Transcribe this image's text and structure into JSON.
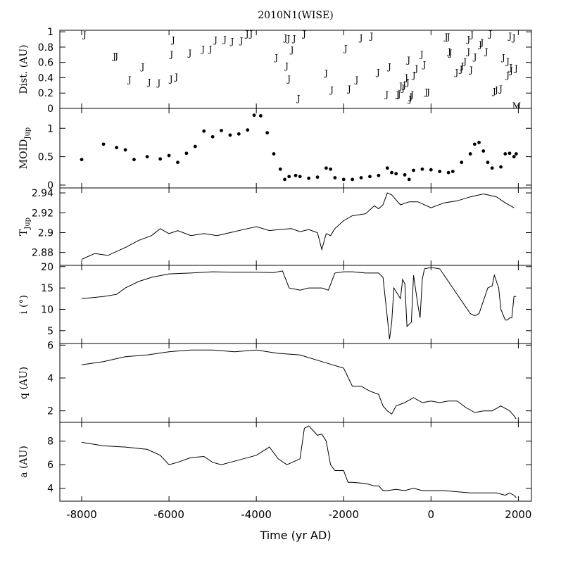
{
  "title": "2010N1(WISE)",
  "x_axis": {
    "label": "Time (yr AD)",
    "range": [
      -8500,
      2300
    ],
    "ticks": [
      -8000,
      -6000,
      -4000,
      -2000,
      0,
      2000
    ],
    "tick_labels": [
      "-8000",
      "-6000",
      "-4000",
      "-2000",
      "0",
      "2000"
    ]
  },
  "chart_data": [
    {
      "type": "scatter",
      "panel": "dist",
      "ylabel": "Dist. (AU)",
      "ylim": [
        0,
        1.02
      ],
      "yticks": [
        0,
        0.2,
        0.4,
        0.6,
        0.8,
        1
      ],
      "ytick_labels": [
        "0",
        "0.2",
        "0.4",
        "0.6",
        "0.8",
        "1"
      ],
      "marker_text": "J",
      "marker_m": "M",
      "x": [
        -7930,
        -7250,
        -7200,
        -6900,
        -6600,
        -6450,
        -6230,
        -5950,
        -5940,
        -5900,
        -5830,
        -5520,
        -5220,
        -5050,
        -4930,
        -4720,
        -4550,
        -4340,
        -4210,
        -4120,
        -3540,
        -3330,
        -3300,
        -3260,
        -3250,
        -3180,
        -3130,
        -3030,
        -2900,
        -2400,
        -2270,
        -1950,
        -1870,
        -1700,
        -1600,
        -1360,
        -1210,
        -1010,
        -950,
        -760,
        -730,
        -690,
        -640,
        -610,
        -560,
        -530,
        -510,
        -480,
        -460,
        -430,
        -390,
        -330,
        -210,
        -150,
        -110,
        -60,
        350,
        400,
        420,
        450,
        590,
        690,
        720,
        780,
        860,
        860,
        920,
        940,
        1010,
        1130,
        1170,
        1270,
        1360,
        1450,
        1500,
        1600,
        1660,
        1760,
        1760,
        1810,
        1830,
        1840,
        1900,
        1950
      ],
      "y": [
        0.97,
        0.69,
        0.69,
        0.38,
        0.55,
        0.35,
        0.34,
        0.39,
        0.71,
        0.9,
        0.42,
        0.73,
        0.78,
        0.78,
        0.9,
        0.91,
        0.88,
        0.89,
        0.98,
        0.98,
        0.67,
        0.93,
        0.56,
        0.92,
        0.39,
        0.77,
        0.92,
        0.14,
        0.98,
        0.47,
        0.25,
        0.79,
        0.26,
        0.38,
        0.93,
        0.95,
        0.48,
        0.19,
        0.55,
        0.19,
        0.19,
        0.3,
        0.27,
        0.31,
        0.41,
        0.35,
        0.64,
        0.13,
        0.16,
        0.19,
        0.44,
        0.53,
        0.71,
        0.58,
        0.22,
        0.22,
        0.94,
        0.94,
        0.75,
        0.73,
        0.48,
        0.52,
        0.56,
        0.62,
        0.75,
        0.91,
        0.51,
        0.97,
        0.68,
        0.84,
        0.87,
        0.75,
        0.98,
        0.23,
        0.25,
        0.26,
        0.67,
        0.44,
        0.62,
        0.95,
        0.54,
        0.5,
        0.93,
        0.53
      ],
      "m_x": [
        1960
      ],
      "m_y": [
        0.04
      ]
    },
    {
      "type": "scatter",
      "panel": "moid",
      "ylabel": "MOID",
      "ylabel_sub": "Jup",
      "ylim": [
        -0.05,
        1.35
      ],
      "yticks": [
        0,
        0.5,
        1
      ],
      "ytick_labels": [
        "0",
        "0.5",
        "1"
      ],
      "x": [
        -8000,
        -7500,
        -7200,
        -7000,
        -6800,
        -6500,
        -6200,
        -6000,
        -5800,
        -5600,
        -5400,
        -5200,
        -5000,
        -4800,
        -4600,
        -4400,
        -4200,
        -4050,
        -3900,
        -3750,
        -3600,
        -3450,
        -3350,
        -3250,
        -3100,
        -3000,
        -2800,
        -2600,
        -2400,
        -2300,
        -2200,
        -2000,
        -1800,
        -1600,
        -1400,
        -1200,
        -1000,
        -900,
        -800,
        -600,
        -500,
        -400,
        -200,
        0,
        200,
        400,
        500,
        700,
        900,
        1000,
        1100,
        1200,
        1300,
        1400,
        1600,
        1700,
        1800,
        1900,
        1950
      ],
      "y": [
        0.45,
        0.72,
        0.66,
        0.62,
        0.45,
        0.5,
        0.46,
        0.52,
        0.4,
        0.56,
        0.68,
        0.95,
        0.85,
        0.96,
        0.88,
        0.9,
        0.97,
        1.23,
        1.22,
        0.92,
        0.55,
        0.28,
        0.1,
        0.15,
        0.17,
        0.15,
        0.12,
        0.14,
        0.3,
        0.28,
        0.13,
        0.1,
        0.1,
        0.13,
        0.15,
        0.17,
        0.3,
        0.22,
        0.2,
        0.18,
        0.1,
        0.26,
        0.28,
        0.27,
        0.24,
        0.22,
        0.24,
        0.4,
        0.55,
        0.72,
        0.75,
        0.6,
        0.4,
        0.3,
        0.32,
        0.55,
        0.56,
        0.5,
        0.55
      ]
    },
    {
      "type": "line",
      "panel": "tjup",
      "ylabel": "T",
      "ylabel_sub": "Jup",
      "ylim": [
        2.867,
        2.945
      ],
      "yticks": [
        2.88,
        2.9,
        2.92,
        2.94
      ],
      "ytick_labels": [
        "2.88",
        "2.9",
        "2.92",
        "2.94"
      ],
      "x": [
        -8000,
        -7700,
        -7400,
        -7000,
        -6700,
        -6400,
        -6200,
        -6000,
        -5800,
        -5500,
        -5200,
        -4900,
        -4600,
        -4300,
        -4000,
        -3700,
        -3500,
        -3200,
        -3000,
        -2800,
        -2600,
        -2500,
        -2400,
        -2300,
        -2200,
        -2000,
        -1800,
        -1500,
        -1300,
        -1200,
        -1100,
        -1000,
        -900,
        -700,
        -500,
        -300,
        0,
        300,
        600,
        900,
        1200,
        1500,
        1700,
        1900
      ],
      "y": [
        2.873,
        2.879,
        2.877,
        2.885,
        2.892,
        2.897,
        2.904,
        2.899,
        2.902,
        2.897,
        2.899,
        2.897,
        2.9,
        2.903,
        2.906,
        2.902,
        2.903,
        2.904,
        2.901,
        2.903,
        2.9,
        2.883,
        2.899,
        2.897,
        2.904,
        2.912,
        2.917,
        2.919,
        2.927,
        2.924,
        2.928,
        2.94,
        2.938,
        2.928,
        2.931,
        2.931,
        2.925,
        2.93,
        2.932,
        2.936,
        2.939,
        2.936,
        2.93,
        2.925
      ]
    },
    {
      "type": "line",
      "panel": "incl",
      "ylabel": "i (°)",
      "ylim": [
        2,
        20.3
      ],
      "yticks": [
        5,
        10,
        15,
        20
      ],
      "ytick_labels": [
        "5",
        "10",
        "15",
        "20"
      ],
      "x": [
        -8000,
        -7500,
        -7200,
        -7000,
        -6700,
        -6400,
        -6000,
        -5500,
        -5000,
        -4500,
        -4000,
        -3600,
        -3400,
        -3250,
        -3000,
        -2800,
        -2500,
        -2350,
        -2200,
        -2000,
        -1800,
        -1500,
        -1200,
        -1100,
        -1000,
        -950,
        -900,
        -850,
        -700,
        -650,
        -600,
        -550,
        -450,
        -400,
        -300,
        -250,
        -200,
        -150,
        0,
        200,
        300,
        500,
        700,
        900,
        1000,
        1100,
        1200,
        1300,
        1400,
        1450,
        1550,
        1600,
        1700,
        1750,
        1800,
        1850,
        1900,
        1950
      ],
      "y": [
        12.5,
        13,
        13.5,
        15,
        16.5,
        17.5,
        18.3,
        18.5,
        18.8,
        18.7,
        18.7,
        18.6,
        19,
        15,
        14.5,
        15,
        15,
        14.5,
        18.5,
        18.8,
        18.8,
        18.5,
        18.5,
        17.5,
        8,
        3,
        7,
        15,
        12.5,
        17,
        16,
        6,
        7,
        18,
        11,
        8,
        17,
        19.5,
        19.8,
        19.5,
        18,
        15,
        12,
        9,
        8.5,
        9,
        12,
        15,
        15.5,
        18,
        15,
        10,
        7.5,
        7.5,
        8,
        8,
        13,
        13
      ]
    },
    {
      "type": "line",
      "panel": "q",
      "ylabel": "q (AU)",
      "ylim": [
        1.3,
        6.1
      ],
      "yticks": [
        2,
        4,
        6
      ],
      "ytick_labels": [
        "2",
        "4",
        "6"
      ],
      "x": [
        -8000,
        -7500,
        -7000,
        -6500,
        -6000,
        -5500,
        -5000,
        -4500,
        -4000,
        -3500,
        -3000,
        -2500,
        -2000,
        -1800,
        -1600,
        -1400,
        -1200,
        -1100,
        -1000,
        -900,
        -800,
        -600,
        -400,
        -200,
        0,
        200,
        400,
        600,
        800,
        1000,
        1200,
        1400,
        1600,
        1800,
        1900,
        1950
      ],
      "y": [
        4.8,
        5.0,
        5.3,
        5.4,
        5.6,
        5.7,
        5.7,
        5.6,
        5.7,
        5.5,
        5.4,
        5.0,
        4.6,
        3.5,
        3.5,
        3.2,
        3.0,
        2.3,
        2.0,
        1.8,
        2.3,
        2.5,
        2.8,
        2.5,
        2.6,
        2.5,
        2.6,
        2.6,
        2.2,
        1.9,
        2.0,
        2.0,
        2.3,
        2.0,
        1.7,
        1.5
      ]
    },
    {
      "type": "line",
      "panel": "a",
      "ylabel": "a (AU)",
      "ylim": [
        2.9,
        9.6
      ],
      "yticks": [
        4,
        6,
        8
      ],
      "ytick_labels": [
        "4",
        "6",
        "8"
      ],
      "x": [
        -8000,
        -7500,
        -7000,
        -6500,
        -6200,
        -6000,
        -5800,
        -5500,
        -5200,
        -5000,
        -4800,
        -4600,
        -4300,
        -4000,
        -3700,
        -3500,
        -3300,
        -3000,
        -2900,
        -2800,
        -2600,
        -2500,
        -2400,
        -2300,
        -2200,
        -2000,
        -1900,
        -1800,
        -1500,
        -1300,
        -1200,
        -1100,
        -1000,
        -800,
        -600,
        -400,
        -200,
        0,
        300,
        600,
        900,
        1200,
        1500,
        1700,
        1800,
        1900,
        1950
      ],
      "y": [
        7.9,
        7.6,
        7.5,
        7.3,
        6.8,
        6.0,
        6.2,
        6.6,
        6.7,
        6.2,
        6.0,
        6.2,
        6.5,
        6.8,
        7.5,
        6.5,
        6.0,
        6.5,
        9.1,
        9.3,
        8.5,
        8.6,
        8.0,
        6.0,
        5.5,
        5.5,
        4.5,
        4.5,
        4.4,
        4.2,
        4.2,
        3.8,
        3.8,
        3.9,
        3.8,
        4.0,
        3.8,
        3.8,
        3.8,
        3.7,
        3.6,
        3.6,
        3.6,
        3.4,
        3.6,
        3.4,
        3.2
      ]
    }
  ]
}
